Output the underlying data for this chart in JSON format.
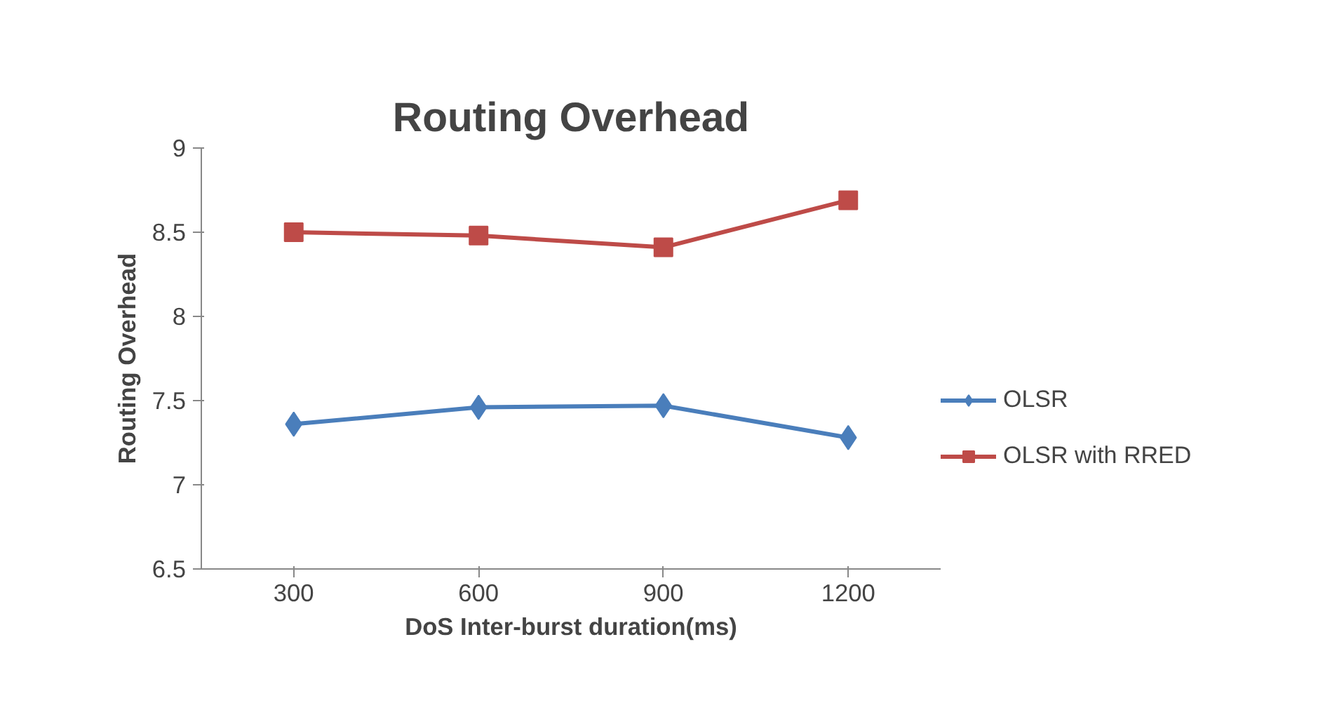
{
  "chart_data": {
    "type": "line",
    "title": "Routing Overhead",
    "xlabel": "DoS Inter-burst duration(ms)",
    "ylabel": "Routing Overhead",
    "categories": [
      "300",
      "600",
      "900",
      "1200"
    ],
    "series": [
      {
        "name": "OLSR",
        "color": "#4a7ebb",
        "marker": "diamond",
        "values": [
          7.36,
          7.46,
          7.47,
          7.28
        ]
      },
      {
        "name": "OLSR with RRED",
        "color": "#be4b48",
        "marker": "square",
        "values": [
          8.5,
          8.48,
          8.41,
          8.69
        ]
      }
    ],
    "ylim": [
      6.5,
      9
    ],
    "yticks": [
      6.5,
      7,
      7.5,
      8,
      8.5,
      9
    ],
    "legend": "right",
    "line_style": "solid"
  }
}
